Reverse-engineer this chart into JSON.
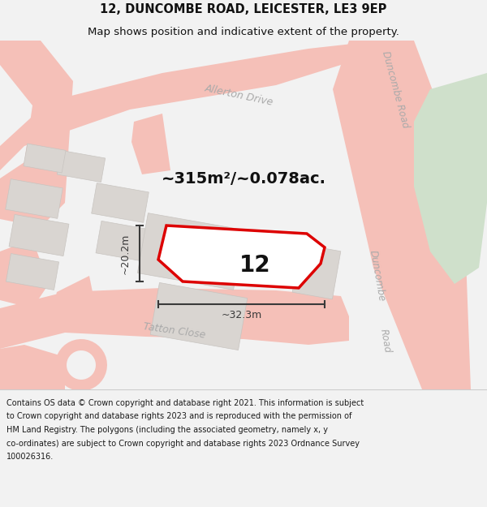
{
  "title": "12, DUNCOMBE ROAD, LEICESTER, LE3 9EP",
  "subtitle": "Map shows position and indicative extent of the property.",
  "area_text": "~315m²/~0.078ac.",
  "dim_width": "~32.3m",
  "dim_height": "~20.2m",
  "property_number": "12",
  "footer_lines": [
    "Contains OS data © Crown copyright and database right 2021. This information is subject",
    "to Crown copyright and database rights 2023 and is reproduced with the permission of",
    "HM Land Registry. The polygons (including the associated geometry, namely x, y",
    "co-ordinates) are subject to Crown copyright and database rights 2023 Ordnance Survey",
    "100026316."
  ],
  "bg_color": "#f2f2f2",
  "map_bg": "#eeecec",
  "road_color": "#f5c0b8",
  "building_color": "#d9d5d1",
  "building_edge": "#c8c4c0",
  "green_color": "#cfe0cb",
  "property_fill": "#ffffff",
  "property_stroke": "#dd0000",
  "dim_color": "#3a3a3a",
  "title_color": "#111111",
  "footer_color": "#1a1a1a",
  "road_label_color": "#aaaaaa",
  "title_fontsize": 10.5,
  "subtitle_fontsize": 9.5,
  "footer_fontsize": 7.0,
  "area_fontsize": 14,
  "prop_num_fontsize": 20,
  "dim_fontsize": 9
}
